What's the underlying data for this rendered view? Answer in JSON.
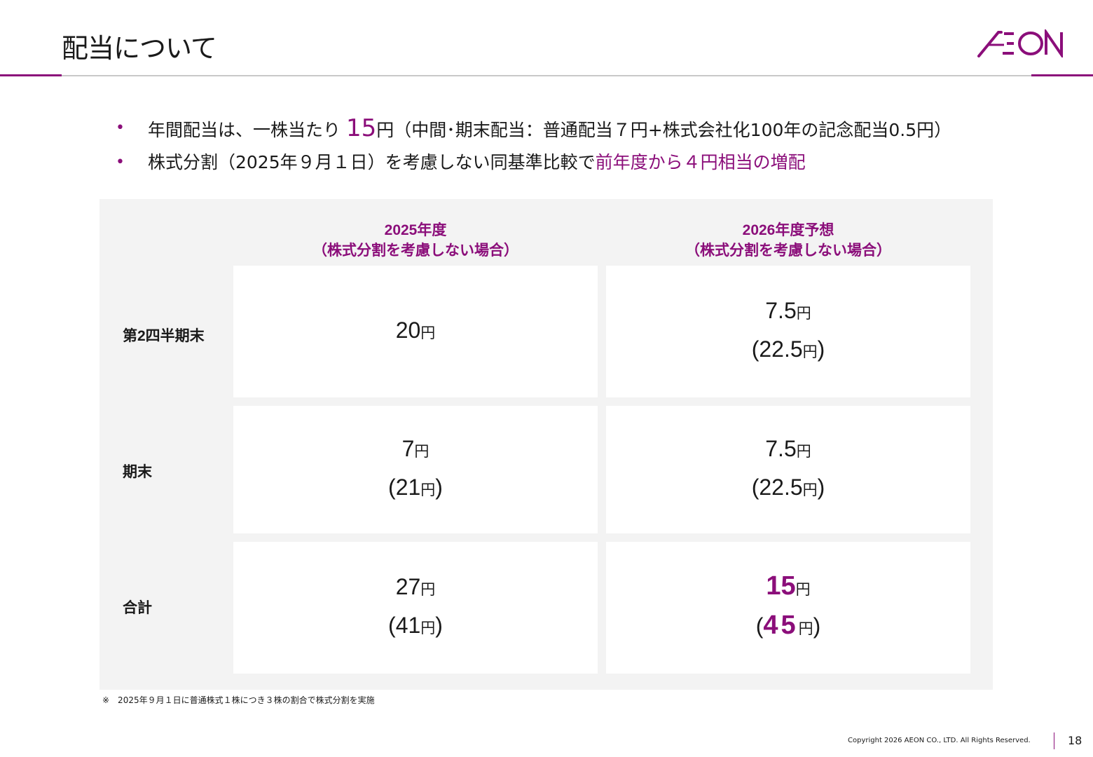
{
  "header": {
    "title": "配当について",
    "logo_text": "AEON"
  },
  "bullets": [
    {
      "pre": "年間配当は、一株当たり ",
      "highlight": "15",
      "post": "円（中間･期末配当：普通配当７円+株式会社化100年の記念配当0.5円）"
    },
    {
      "pre": "株式分割（2025年９月１日）を考慮しない同基準比較で",
      "highlight": "前年度から４円相当の増配"
    }
  ],
  "table": {
    "columns": [
      {
        "line1": "2025年度",
        "line2": "（株式分割を考慮しない場合）"
      },
      {
        "line1": "2026年度予想",
        "line2": "（株式分割を考慮しない場合）"
      }
    ],
    "rows": [
      {
        "label": "第2四半期末",
        "c2025": {
          "value": "20",
          "unit": "円"
        },
        "c2026": {
          "value": "7.5",
          "unit": "円",
          "paren_value": "22.5",
          "paren_unit": "円"
        }
      },
      {
        "label": "期末",
        "c2025": {
          "value": "7",
          "unit": "円",
          "paren_value": "21",
          "paren_unit": "円"
        },
        "c2026": {
          "value": "7.5",
          "unit": "円",
          "paren_value": "22.5",
          "paren_unit": "円"
        }
      },
      {
        "label": "合計",
        "c2025": {
          "value": "27",
          "unit": "円",
          "paren_value": "41",
          "paren_unit": "円"
        },
        "c2026": {
          "value": "15",
          "unit": "円",
          "paren_value": "45",
          "paren_unit": "円"
        }
      }
    ]
  },
  "footnote": "※　2025年９月１日に普通株式１株につき３株の割合で株式分割を実施",
  "footer": {
    "copyright": "Copyright 2026 AEON CO., LTD. All Rights Reserved.",
    "page_number": "18"
  },
  "colors": {
    "accent": "#8b0e7a",
    "table_bg": "#f3f3f3",
    "text": "#1a1a1a"
  }
}
